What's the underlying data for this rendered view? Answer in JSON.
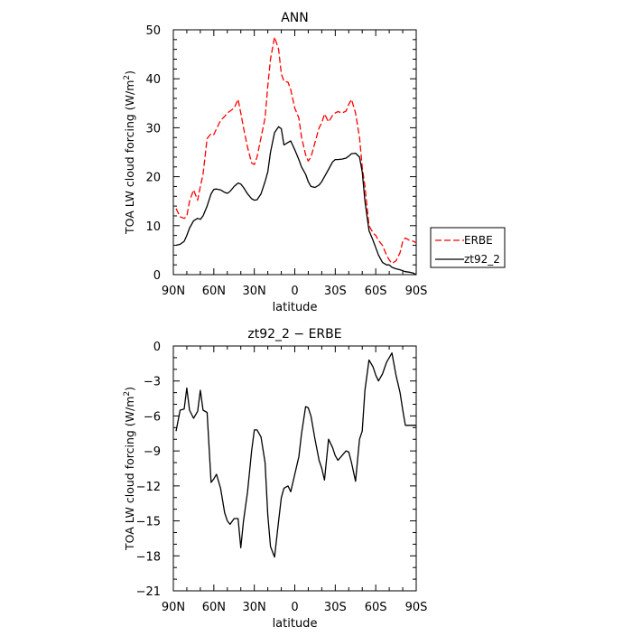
{
  "chart_data": [
    {
      "type": "line",
      "title": "ANN",
      "xlabel": "latitude",
      "ylabel_main": "TOA LW cloud forcing (W/m",
      "ylabel_sup": "2",
      "ylabel_tail": ")",
      "x_ticks": [
        90,
        60,
        30,
        0,
        -30,
        -60,
        -90
      ],
      "x_tick_labels": [
        "90N",
        "60N",
        "30N",
        "0",
        "30S",
        "60S",
        "90S"
      ],
      "xlim": [
        90,
        -90
      ],
      "ylim": [
        0,
        50
      ],
      "y_ticks": [
        0,
        10,
        20,
        30,
        40,
        50
      ],
      "y_tick_labels": [
        "0",
        "10",
        "20",
        "30",
        "40",
        "50"
      ],
      "legend_position": "right",
      "series": [
        {
          "name": "ERBE",
          "color": "#ff0000",
          "dash": "dashed",
          "x": [
            88,
            85,
            82,
            80,
            78,
            75,
            72,
            70,
            68,
            65,
            62,
            60,
            58,
            55,
            52,
            50,
            48,
            45,
            42,
            40,
            38,
            35,
            32,
            30,
            28,
            25,
            22,
            20,
            18,
            15,
            12,
            10,
            8,
            5,
            3,
            0,
            -3,
            -5,
            -8,
            -10,
            -12,
            -15,
            -18,
            -20,
            -22,
            -25,
            -28,
            -30,
            -32,
            -35,
            -38,
            -40,
            -42,
            -45,
            -48,
            -50,
            -52,
            -55,
            -58,
            -60,
            -62,
            -65,
            -68,
            -70,
            -72,
            -75,
            -78,
            -80,
            -82,
            -85,
            -88,
            -90
          ],
          "y": [
            13.5,
            11.8,
            11.5,
            11.9,
            15.0,
            17.3,
            15.2,
            18.0,
            20.5,
            27.8,
            28.8,
            28.6,
            29.8,
            31.5,
            32.3,
            33.0,
            33.4,
            34.0,
            35.8,
            33.0,
            30.0,
            26.0,
            22.8,
            22.5,
            24.0,
            28.0,
            32.0,
            38.5,
            44.0,
            48.5,
            46.0,
            41.0,
            39.5,
            39.3,
            37.8,
            34.0,
            32.0,
            28.0,
            24.5,
            23.2,
            24.0,
            27.0,
            30.0,
            31.0,
            32.8,
            31.2,
            32.5,
            33.0,
            33.3,
            33.0,
            33.4,
            34.8,
            35.8,
            33.0,
            28.0,
            22.0,
            18.0,
            10.0,
            8.5,
            8.0,
            7.0,
            6.0,
            4.0,
            3.0,
            2.3,
            2.8,
            4.5,
            6.8,
            7.5,
            7.0,
            6.8,
            6.5
          ]
        },
        {
          "name": "zt92_2",
          "color": "#000000",
          "dash": "solid",
          "x": [
            88,
            85,
            82,
            80,
            78,
            75,
            72,
            70,
            68,
            65,
            62,
            60,
            58,
            55,
            52,
            50,
            48,
            45,
            42,
            40,
            38,
            35,
            32,
            30,
            28,
            25,
            22,
            20,
            18,
            15,
            12,
            10,
            8,
            5,
            3,
            0,
            -3,
            -5,
            -8,
            -10,
            -12,
            -15,
            -18,
            -20,
            -22,
            -25,
            -28,
            -30,
            -32,
            -35,
            -38,
            -40,
            -42,
            -45,
            -48,
            -50,
            -52,
            -55,
            -58,
            -60,
            -62,
            -65,
            -68,
            -70,
            -72,
            -75,
            -78,
            -80,
            -82,
            -85,
            -88,
            -90
          ],
          "y": [
            6.0,
            6.2,
            6.8,
            8.0,
            9.5,
            11.0,
            11.5,
            11.3,
            12.0,
            14.0,
            16.5,
            17.4,
            17.5,
            17.3,
            16.8,
            16.6,
            17.0,
            18.0,
            18.7,
            18.5,
            17.8,
            16.5,
            15.5,
            15.2,
            15.3,
            16.5,
            19.0,
            21.0,
            25.0,
            29.0,
            30.2,
            29.8,
            26.5,
            27.0,
            27.3,
            25.5,
            23.5,
            22.0,
            20.5,
            19.0,
            18.0,
            17.8,
            18.3,
            19.0,
            20.0,
            21.5,
            23.0,
            23.5,
            23.5,
            23.6,
            23.8,
            24.2,
            24.7,
            24.8,
            24.0,
            21.0,
            15.0,
            9.0,
            7.0,
            5.5,
            4.0,
            2.5,
            2.0,
            2.0,
            1.5,
            1.2,
            1.0,
            0.8,
            0.6,
            0.5,
            0.3,
            0.0
          ]
        }
      ]
    },
    {
      "type": "line",
      "title": "zt92_2 − ERBE",
      "xlabel": "latitude",
      "ylabel_main": "TOA LW cloud forcing (W/m",
      "ylabel_sup": "2",
      "ylabel_tail": ")",
      "x_ticks": [
        90,
        60,
        30,
        0,
        -30,
        -60,
        -90
      ],
      "x_tick_labels": [
        "90N",
        "60N",
        "30N",
        "0",
        "30S",
        "60S",
        "90S"
      ],
      "xlim": [
        90,
        -90
      ],
      "ylim": [
        -21,
        0
      ],
      "y_ticks": [
        0,
        -3,
        -6,
        -9,
        -12,
        -15,
        -18,
        -21
      ],
      "y_tick_labels": [
        "0",
        "−3",
        "−6",
        "−9",
        "−12",
        "−15",
        "−18",
        "−21"
      ],
      "series": [
        {
          "name": "",
          "color": "#000000",
          "dash": "solid",
          "x": [
            88,
            85,
            82,
            80,
            78,
            75,
            72,
            70,
            68,
            65,
            62,
            60,
            58,
            55,
            52,
            50,
            48,
            45,
            42,
            40,
            38,
            35,
            32,
            30,
            28,
            25,
            22,
            20,
            18,
            15,
            12,
            10,
            8,
            5,
            3,
            0,
            -3,
            -5,
            -8,
            -10,
            -12,
            -15,
            -18,
            -20,
            -22,
            -25,
            -28,
            -30,
            -32,
            -35,
            -38,
            -40,
            -42,
            -45,
            -48,
            -50,
            -52,
            -55,
            -58,
            -60,
            -62,
            -65,
            -68,
            -70,
            -72,
            -75,
            -78,
            -80,
            -82,
            -85,
            -88,
            -90
          ],
          "y": [
            -7.3,
            -5.5,
            -5.4,
            -3.6,
            -5.5,
            -6.2,
            -5.6,
            -3.8,
            -5.5,
            -5.7,
            -11.7,
            -11.4,
            -11.0,
            -12.2,
            -14.3,
            -15.0,
            -15.3,
            -14.8,
            -14.8,
            -17.3,
            -15.0,
            -12.5,
            -9.0,
            -7.2,
            -7.2,
            -7.8,
            -10.0,
            -14.5,
            -17.2,
            -18.1,
            -15.0,
            -13.0,
            -12.2,
            -12.0,
            -12.5,
            -11.0,
            -9.5,
            -7.5,
            -5.2,
            -5.3,
            -6.0,
            -8.0,
            -9.8,
            -10.5,
            -11.5,
            -8.0,
            -8.7,
            -9.4,
            -9.8,
            -9.4,
            -9.0,
            -9.1,
            -10.0,
            -11.6,
            -8.0,
            -7.3,
            -3.8,
            -1.2,
            -1.8,
            -2.5,
            -3.0,
            -2.4,
            -1.4,
            -1.0,
            -0.6,
            -2.5,
            -4.0,
            -5.5,
            -6.8,
            -6.8,
            -6.8,
            -6.8
          ]
        }
      ]
    }
  ]
}
